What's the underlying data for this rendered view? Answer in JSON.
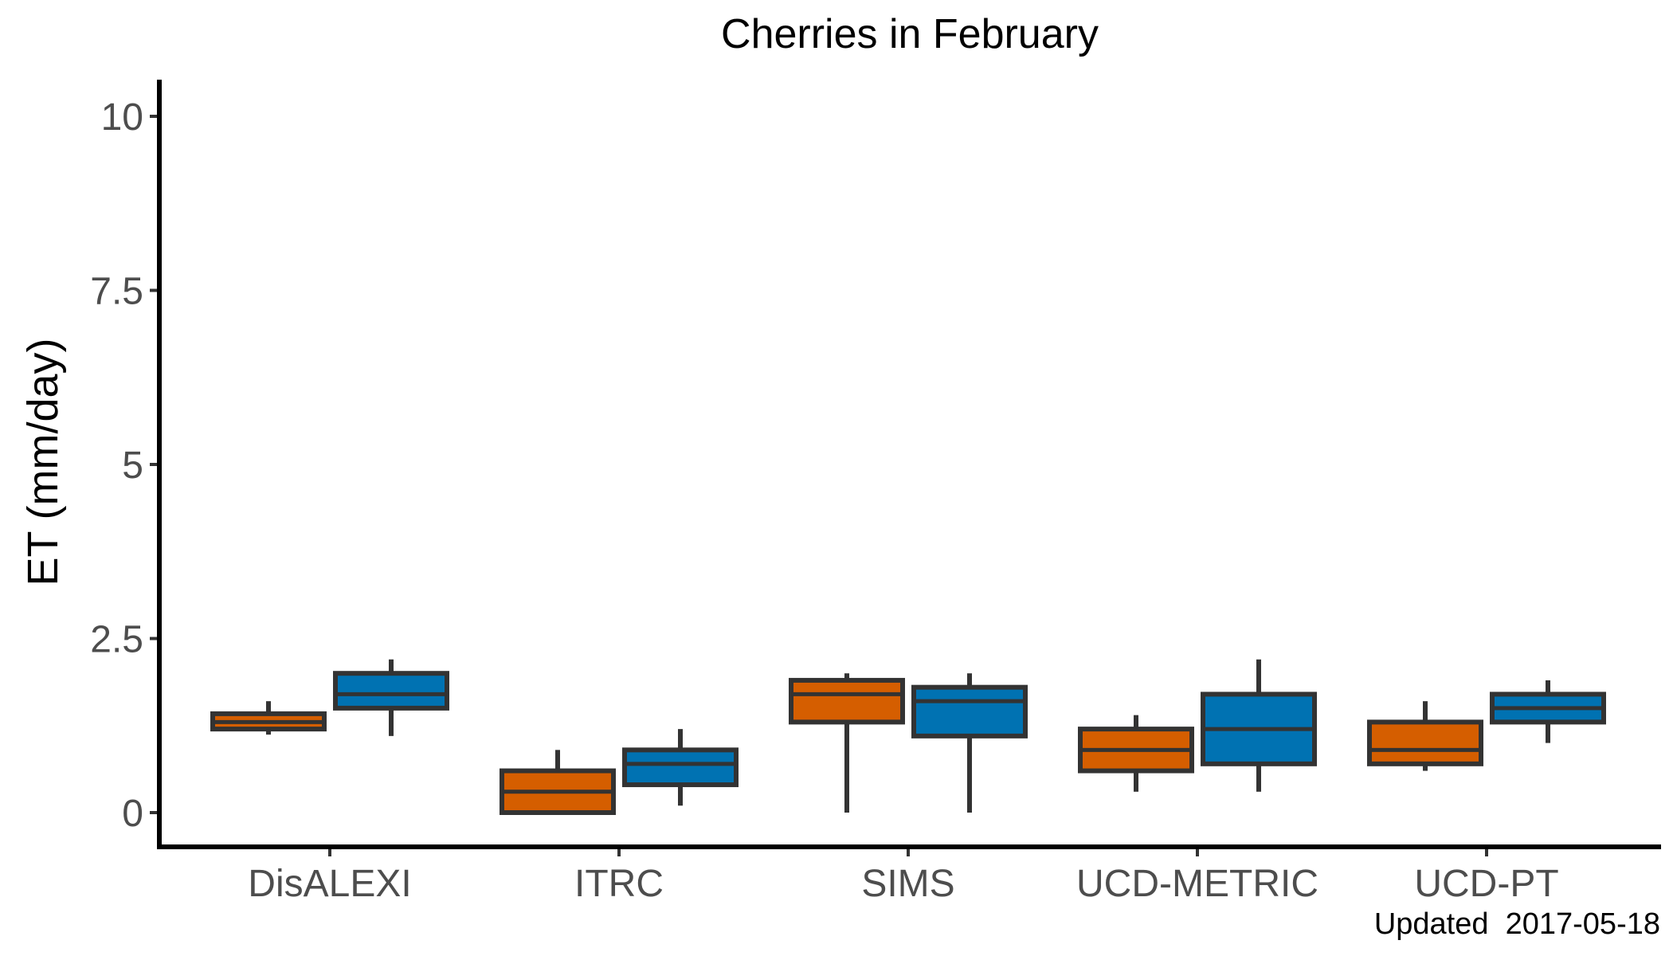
{
  "chart_data": {
    "type": "box",
    "title": "Cherries in February",
    "xlabel": "",
    "ylabel": "ET (mm/day)",
    "ylim": [
      -0.5,
      10.5
    ],
    "yticks": [
      0,
      2.5,
      5,
      7.5,
      10
    ],
    "ytick_labels": [
      "0",
      "2.5",
      "5",
      "7.5",
      "10"
    ],
    "categories": [
      "DisALEXI",
      "ITRC",
      "SIMS",
      "UCD-METRIC",
      "UCD-PT"
    ],
    "grid": false,
    "legend": "none",
    "series": [
      {
        "color": "#D55E00",
        "boxes": [
          {
            "min": 1.12,
            "q1": 1.2,
            "median": 1.3,
            "q3": 1.42,
            "max": 1.6
          },
          {
            "min": 0.0,
            "q1": 0.0,
            "median": 0.3,
            "q3": 0.6,
            "max": 0.9
          },
          {
            "min": 0.0,
            "q1": 1.3,
            "median": 1.7,
            "q3": 1.9,
            "max": 2.0
          },
          {
            "min": 0.3,
            "q1": 0.6,
            "median": 0.9,
            "q3": 1.2,
            "max": 1.4
          },
          {
            "min": 0.6,
            "q1": 0.7,
            "median": 0.9,
            "q3": 1.3,
            "max": 1.6
          }
        ]
      },
      {
        "color": "#0072B2",
        "boxes": [
          {
            "min": 1.1,
            "q1": 1.5,
            "median": 1.7,
            "q3": 2.0,
            "max": 2.2
          },
          {
            "min": 0.1,
            "q1": 0.4,
            "median": 0.7,
            "q3": 0.9,
            "max": 1.2
          },
          {
            "min": 0.0,
            "q1": 1.1,
            "median": 1.6,
            "q3": 1.8,
            "max": 2.0
          },
          {
            "min": 0.3,
            "q1": 0.7,
            "median": 1.2,
            "q3": 1.7,
            "max": 2.2
          },
          {
            "min": 1.0,
            "q1": 1.3,
            "median": 1.5,
            "q3": 1.7,
            "max": 1.9
          }
        ]
      }
    ],
    "annotation": "Updated  2017-05-18"
  }
}
